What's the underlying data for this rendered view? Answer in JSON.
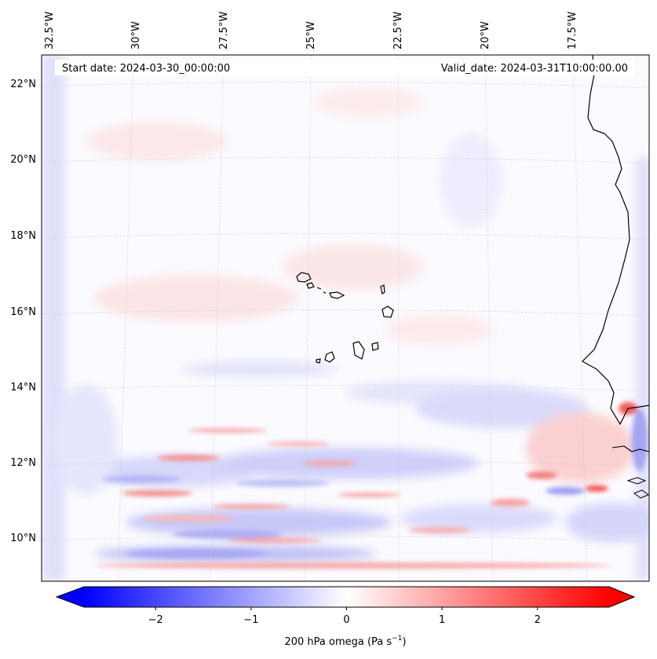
{
  "map": {
    "start_date": "Start date: 2024-03-30_00:00:00",
    "valid_date": "Valid_date: 2024-03-31T10:00:00.00",
    "lon_labels": [
      "32.5°W",
      "30°W",
      "27.5°W",
      "25°W",
      "22.5°W",
      "20°W",
      "17.5°W"
    ],
    "lat_labels": [
      "22°N",
      "20°N",
      "18°N",
      "16°N",
      "14°N",
      "12°N",
      "10°N"
    ],
    "field_colors": {
      "negative": "#0000ff",
      "neutral": "#ffffff",
      "positive": "#ff0000"
    }
  },
  "colorbar": {
    "label_prefix": "200 hPa omega (Pa s",
    "label_exponent": "−1",
    "label_suffix": ")",
    "ticks": [
      {
        "value": -2,
        "label": "−2"
      },
      {
        "value": -1,
        "label": "−1"
      },
      {
        "value": 0,
        "label": "0"
      },
      {
        "value": 1,
        "label": "1"
      },
      {
        "value": 2,
        "label": "2"
      }
    ],
    "range": [
      -2.75,
      2.75
    ]
  }
}
